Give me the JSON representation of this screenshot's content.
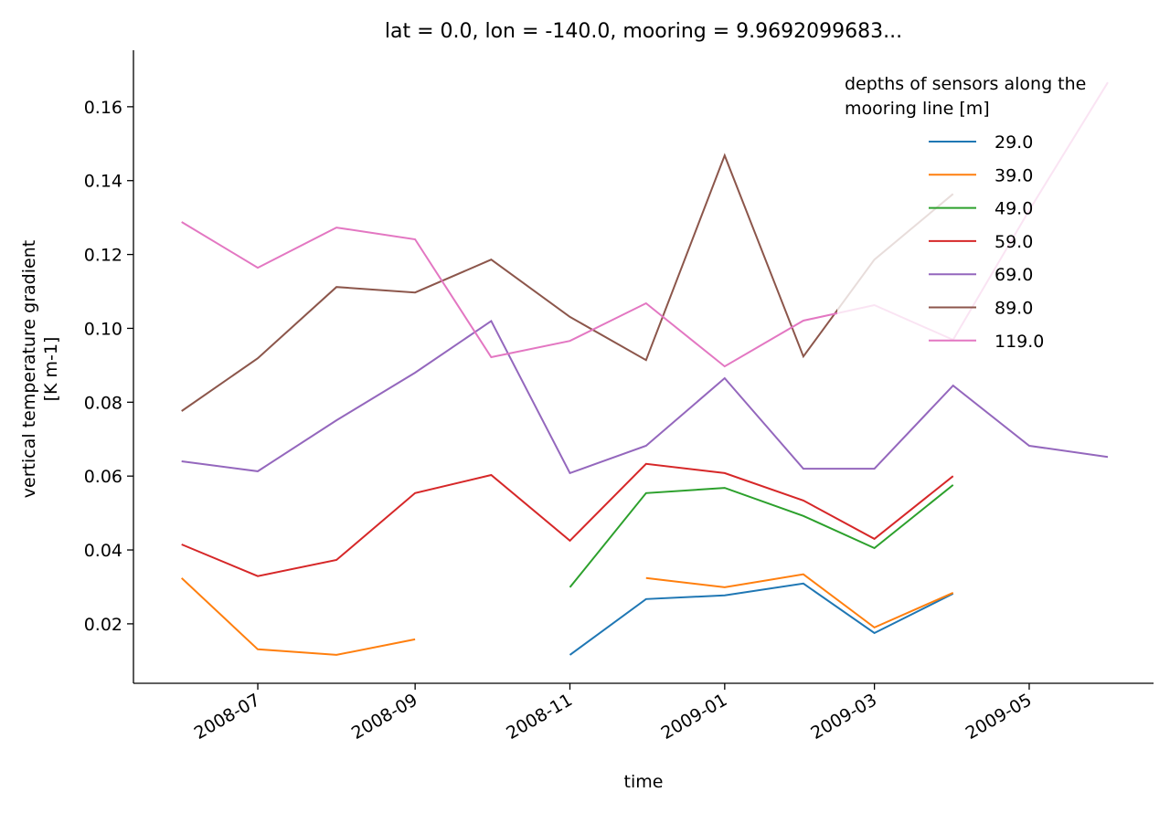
{
  "chart_data": {
    "type": "line",
    "title": "lat = 0.0, lon = -140.0, mooring = 9.9692099683...",
    "xlabel": "time",
    "ylabel": [
      "vertical temperature gradient",
      "[K m-1]"
    ],
    "ylim": [
      0.0039,
      0.1753
    ],
    "xlim": [
      "2008-05-13",
      "2009-06-19"
    ],
    "grid": false,
    "yticks": [
      0.02,
      0.04,
      0.06,
      0.08,
      0.1,
      0.12,
      0.14,
      0.16
    ],
    "ytick_labels": [
      "0.02",
      "0.04",
      "0.06",
      "0.08",
      "0.10",
      "0.12",
      "0.14",
      "0.16"
    ],
    "xticks": [
      "2008-07-01",
      "2008-09-01",
      "2008-11-01",
      "2009-01-01",
      "2009-03-01",
      "2009-05-01"
    ],
    "xtick_labels": [
      "2008-07",
      "2008-09",
      "2008-11",
      "2009-01",
      "2009-03",
      "2009-05"
    ],
    "x": [
      "2008-06-01",
      "2008-07-01",
      "2008-08-01",
      "2008-09-01",
      "2008-10-01",
      "2008-11-01",
      "2008-12-01",
      "2009-01-01",
      "2009-02-01",
      "2009-03-01",
      "2009-04-01",
      "2009-05-01",
      "2009-06-01"
    ],
    "legend": {
      "title": [
        "depths of sensors along the",
        "mooring line [m]"
      ],
      "placement": "top-right"
    },
    "series": [
      {
        "name": "29.0",
        "color": "#1f77b4",
        "values": [
          null,
          null,
          null,
          null,
          null,
          0.0116,
          0.0267,
          0.0277,
          0.0309,
          0.0175,
          0.0282,
          null,
          null
        ]
      },
      {
        "name": "39.0",
        "color": "#ff7f0e",
        "values": [
          0.0324,
          0.0131,
          0.0116,
          0.0158,
          null,
          null,
          0.0324,
          0.0299,
          0.0334,
          0.019,
          0.0284,
          null,
          null
        ]
      },
      {
        "name": "49.0",
        "color": "#2ca02c",
        "values": [
          null,
          null,
          null,
          null,
          null,
          0.0299,
          0.0554,
          0.0568,
          0.0492,
          0.0405,
          0.0576,
          null,
          null
        ]
      },
      {
        "name": "59.0",
        "color": "#d62728",
        "values": [
          0.0415,
          0.0329,
          0.0373,
          0.0554,
          0.0603,
          0.0425,
          0.0633,
          0.0608,
          0.0534,
          0.043,
          0.06,
          null,
          null
        ]
      },
      {
        "name": "69.0",
        "color": "#9467bd",
        "values": [
          0.064,
          0.0613,
          0.0751,
          0.088,
          0.102,
          0.0608,
          0.0682,
          0.0865,
          0.062,
          0.062,
          0.0845,
          0.0682,
          0.0652
        ]
      },
      {
        "name": "89.0",
        "color": "#8c564b",
        "values": [
          0.0776,
          0.0919,
          0.1112,
          0.1097,
          0.1186,
          0.1031,
          0.0914,
          0.1468,
          0.0924,
          0.1186,
          0.1364,
          null,
          null
        ]
      },
      {
        "name": "119.0",
        "color": "#e377c2",
        "values": [
          0.1288,
          0.1164,
          0.1273,
          0.1241,
          0.0922,
          0.0966,
          0.1068,
          0.0897,
          0.1021,
          0.1063,
          0.0969,
          0.132,
          0.1666
        ]
      }
    ]
  }
}
